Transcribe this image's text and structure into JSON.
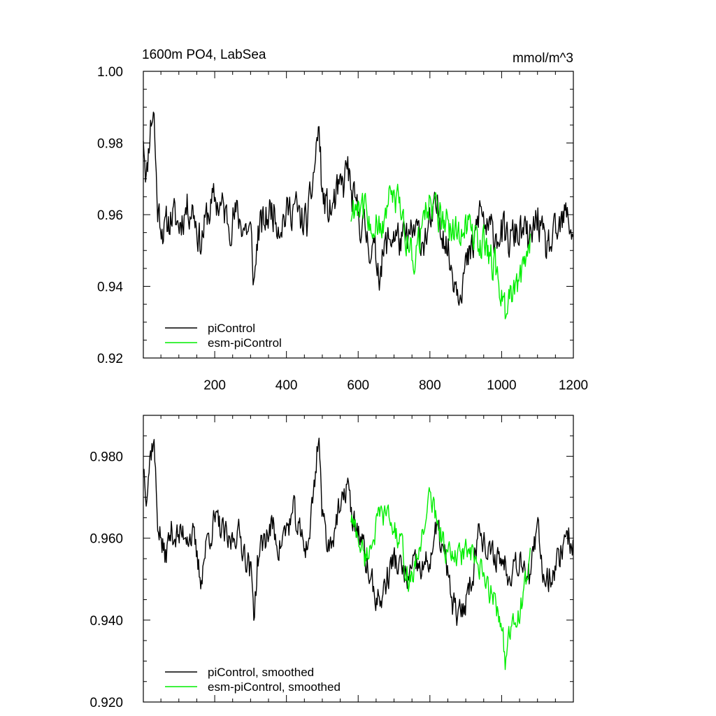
{
  "chart_data": [
    {
      "type": "line",
      "title": "1600m PO4, LabSea",
      "units": "mmol/m^3",
      "xlim": [
        1,
        1200
      ],
      "ylim": [
        0.92,
        1.0
      ],
      "x_ticks": [
        200,
        400,
        600,
        800,
        1000,
        1200
      ],
      "y_ticks": [
        0.92,
        0.94,
        0.96,
        0.98,
        1.0
      ],
      "y_tick_labels": [
        "0.92",
        "0.94",
        "0.96",
        "0.98",
        "1.00"
      ],
      "grid": false,
      "legend_position": "bottom-left",
      "series": [
        {
          "name": "piControl",
          "color": "#000000",
          "x_range": [
            1,
            1200
          ],
          "anchors": [
            [
              1,
              0.983
            ],
            [
              10,
              0.97
            ],
            [
              20,
              0.985
            ],
            [
              30,
              0.99
            ],
            [
              40,
              0.962
            ],
            [
              60,
              0.955
            ],
            [
              80,
              0.96
            ],
            [
              100,
              0.957
            ],
            [
              120,
              0.962
            ],
            [
              140,
              0.962
            ],
            [
              160,
              0.952
            ],
            [
              180,
              0.96
            ],
            [
              200,
              0.964
            ],
            [
              220,
              0.962
            ],
            [
              240,
              0.958
            ],
            [
              260,
              0.96
            ],
            [
              280,
              0.957
            ],
            [
              300,
              0.955
            ],
            [
              310,
              0.94
            ],
            [
              320,
              0.955
            ],
            [
              340,
              0.958
            ],
            [
              360,
              0.962
            ],
            [
              380,
              0.958
            ],
            [
              400,
              0.96
            ],
            [
              420,
              0.963
            ],
            [
              440,
              0.958
            ],
            [
              460,
              0.958
            ],
            [
              480,
              0.975
            ],
            [
              490,
              0.985
            ],
            [
              500,
              0.965
            ],
            [
              520,
              0.96
            ],
            [
              540,
              0.965
            ],
            [
              560,
              0.968
            ],
            [
              570,
              0.975
            ],
            [
              580,
              0.965
            ],
            [
              600,
              0.96
            ],
            [
              620,
              0.955
            ],
            [
              640,
              0.95
            ],
            [
              660,
              0.945
            ],
            [
              680,
              0.952
            ],
            [
              700,
              0.955
            ],
            [
              720,
              0.952
            ],
            [
              740,
              0.953
            ],
            [
              760,
              0.955
            ],
            [
              780,
              0.953
            ],
            [
              800,
              0.956
            ],
            [
              820,
              0.962
            ],
            [
              840,
              0.955
            ],
            [
              860,
              0.945
            ],
            [
              880,
              0.94
            ],
            [
              900,
              0.945
            ],
            [
              920,
              0.95
            ],
            [
              940,
              0.962
            ],
            [
              960,
              0.955
            ],
            [
              980,
              0.955
            ],
            [
              1000,
              0.955
            ],
            [
              1020,
              0.952
            ],
            [
              1040,
              0.955
            ],
            [
              1060,
              0.955
            ],
            [
              1080,
              0.952
            ],
            [
              1100,
              0.96
            ],
            [
              1120,
              0.95
            ],
            [
              1140,
              0.952
            ],
            [
              1160,
              0.955
            ],
            [
              1180,
              0.96
            ],
            [
              1200,
              0.955
            ]
          ],
          "noise_amplitude": 0.0085
        },
        {
          "name": "esm-piControl",
          "color": "#00ee00",
          "x_range": [
            580,
            1080
          ],
          "anchors": [
            [
              580,
              0.96
            ],
            [
              600,
              0.965
            ],
            [
              620,
              0.96
            ],
            [
              640,
              0.958
            ],
            [
              660,
              0.955
            ],
            [
              680,
              0.962
            ],
            [
              700,
              0.965
            ],
            [
              720,
              0.96
            ],
            [
              740,
              0.952
            ],
            [
              760,
              0.948
            ],
            [
              780,
              0.958
            ],
            [
              800,
              0.965
            ],
            [
              820,
              0.96
            ],
            [
              840,
              0.958
            ],
            [
              860,
              0.955
            ],
            [
              880,
              0.955
            ],
            [
              900,
              0.958
            ],
            [
              920,
              0.955
            ],
            [
              940,
              0.952
            ],
            [
              960,
              0.95
            ],
            [
              980,
              0.945
            ],
            [
              1000,
              0.94
            ],
            [
              1010,
              0.932
            ],
            [
              1020,
              0.935
            ],
            [
              1040,
              0.94
            ],
            [
              1060,
              0.945
            ],
            [
              1080,
              0.955
            ]
          ],
          "noise_amplitude": 0.008
        }
      ]
    },
    {
      "type": "line",
      "xlim": [
        1,
        1200
      ],
      "ylim": [
        0.92,
        0.99
      ],
      "y_ticks": [
        0.92,
        0.94,
        0.96,
        0.98
      ],
      "y_tick_labels": [
        "0.920",
        "0.940",
        "0.960",
        "0.980"
      ],
      "grid": false,
      "legend_position": "bottom-left",
      "series": [
        {
          "name": "piControl, smoothed",
          "color": "#000000",
          "x_range": [
            1,
            1200
          ],
          "anchors": [
            [
              1,
              0.978
            ],
            [
              10,
              0.972
            ],
            [
              20,
              0.98
            ],
            [
              30,
              0.985
            ],
            [
              40,
              0.965
            ],
            [
              60,
              0.955
            ],
            [
              80,
              0.962
            ],
            [
              100,
              0.96
            ],
            [
              120,
              0.962
            ],
            [
              140,
              0.96
            ],
            [
              160,
              0.95
            ],
            [
              180,
              0.96
            ],
            [
              200,
              0.964
            ],
            [
              220,
              0.962
            ],
            [
              240,
              0.958
            ],
            [
              260,
              0.962
            ],
            [
              280,
              0.958
            ],
            [
              300,
              0.952
            ],
            [
              310,
              0.942
            ],
            [
              320,
              0.955
            ],
            [
              340,
              0.96
            ],
            [
              360,
              0.963
            ],
            [
              380,
              0.958
            ],
            [
              400,
              0.962
            ],
            [
              420,
              0.966
            ],
            [
              440,
              0.96
            ],
            [
              460,
              0.958
            ],
            [
              480,
              0.975
            ],
            [
              490,
              0.987
            ],
            [
              500,
              0.965
            ],
            [
              520,
              0.958
            ],
            [
              540,
              0.965
            ],
            [
              560,
              0.968
            ],
            [
              570,
              0.976
            ],
            [
              580,
              0.965
            ],
            [
              600,
              0.962
            ],
            [
              620,
              0.955
            ],
            [
              640,
              0.948
            ],
            [
              660,
              0.944
            ],
            [
              680,
              0.95
            ],
            [
              700,
              0.955
            ],
            [
              720,
              0.952
            ],
            [
              740,
              0.95
            ],
            [
              760,
              0.953
            ],
            [
              780,
              0.952
            ],
            [
              800,
              0.955
            ],
            [
              820,
              0.962
            ],
            [
              840,
              0.956
            ],
            [
              860,
              0.945
            ],
            [
              880,
              0.94
            ],
            [
              900,
              0.945
            ],
            [
              920,
              0.952
            ],
            [
              940,
              0.965
            ],
            [
              960,
              0.955
            ],
            [
              980,
              0.956
            ],
            [
              1000,
              0.955
            ],
            [
              1020,
              0.952
            ],
            [
              1040,
              0.955
            ],
            [
              1060,
              0.955
            ],
            [
              1080,
              0.95
            ],
            [
              1100,
              0.962
            ],
            [
              1120,
              0.95
            ],
            [
              1140,
              0.952
            ],
            [
              1160,
              0.955
            ],
            [
              1180,
              0.962
            ],
            [
              1200,
              0.958
            ]
          ],
          "noise_amplitude": 0.006
        },
        {
          "name": "esm-piControl, smoothed",
          "color": "#00ee00",
          "x_range": [
            580,
            1080
          ],
          "anchors": [
            [
              580,
              0.965
            ],
            [
              600,
              0.96
            ],
            [
              620,
              0.955
            ],
            [
              640,
              0.96
            ],
            [
              660,
              0.965
            ],
            [
              680,
              0.966
            ],
            [
              700,
              0.962
            ],
            [
              720,
              0.958
            ],
            [
              740,
              0.95
            ],
            [
              760,
              0.952
            ],
            [
              780,
              0.962
            ],
            [
              800,
              0.97
            ],
            [
              820,
              0.965
            ],
            [
              840,
              0.958
            ],
            [
              860,
              0.955
            ],
            [
              880,
              0.955
            ],
            [
              900,
              0.957
            ],
            [
              920,
              0.955
            ],
            [
              940,
              0.952
            ],
            [
              960,
              0.948
            ],
            [
              980,
              0.945
            ],
            [
              1000,
              0.94
            ],
            [
              1010,
              0.93
            ],
            [
              1020,
              0.935
            ],
            [
              1040,
              0.94
            ],
            [
              1060,
              0.945
            ],
            [
              1080,
              0.955
            ]
          ],
          "noise_amplitude": 0.005
        }
      ]
    }
  ]
}
